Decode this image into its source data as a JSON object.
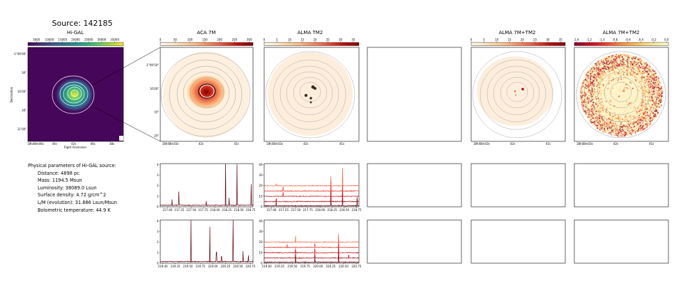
{
  "page": {
    "suptitle": "Source: 142185"
  },
  "colors": {
    "viridis": [
      "#440154",
      "#472d7b",
      "#3b528b",
      "#2c728e",
      "#21918c",
      "#28ae80",
      "#5ec962",
      "#addc30",
      "#fde725"
    ],
    "orrd": [
      "#fff7ec",
      "#fee8c8",
      "#fdd49e",
      "#fdbb84",
      "#fc8d59",
      "#ef6548",
      "#d7301f",
      "#b30000",
      "#7f0000"
    ],
    "ylorrd_r": [
      "#800026",
      "#bd0026",
      "#e31a1c",
      "#fc4e2a",
      "#fd8d3c",
      "#feb24c",
      "#fed976",
      "#ffeda0",
      "#ffffcc"
    ],
    "spectrum_lines": [
      "#67000d",
      "#a50f15",
      "#cb181d",
      "#ef3b2c",
      "#fb6a4a"
    ],
    "contour_gray": "#9a9a9a",
    "contour_white": "#ffffff"
  },
  "maps": {
    "higal": {
      "title": "Hi-GAL",
      "colorbar_ticks": [
        "5000",
        "10000",
        "15000",
        "20000",
        "25000",
        "30000",
        "35000"
      ],
      "ytick_labels": [
        "-1°09'00\"",
        "30\"",
        "10'00\"",
        "30\"",
        "11'00\""
      ],
      "xtick_labels": [
        "18h48m46s",
        "44s",
        "42s",
        "40s",
        "38s"
      ],
      "xlabel": "Right Ascension",
      "ylabel": "Declination"
    },
    "aca7m": {
      "title": "ACA 7M",
      "colorbar_ticks": [
        "0",
        "50",
        "100",
        "150",
        "200",
        "250",
        "300"
      ],
      "ytick_labels": [
        "-1°09'50\"",
        "10'00\"",
        "10\"",
        "20\""
      ],
      "xtick_labels": [
        "18h48m43s",
        "42s",
        "41s"
      ]
    },
    "alma_tm2": {
      "title": "ALMA TM2",
      "colorbar_ticks": [
        "0",
        "5",
        "10",
        "15",
        "20",
        "25",
        "30",
        "35"
      ],
      "xtick_labels": [
        "18h48m43s",
        "42s",
        "41s"
      ]
    },
    "alma_7m_tm2": {
      "title": "ALMA 7M+TM2",
      "colorbar_ticks": [
        "0",
        "5",
        "10",
        "15",
        "20",
        "25",
        "30",
        "35"
      ],
      "xtick_labels": [
        "18h48m43s",
        "42s",
        "41s"
      ]
    },
    "alma_7m_tm2_neg": {
      "title": "ALMA 7M+TM2",
      "colorbar_ticks": [
        "-1.4",
        "-1.2",
        "-1.0",
        "-0.8",
        "-0.6",
        "-0.4",
        "-0.2",
        "0.0"
      ],
      "xtick_labels": [
        "18h48m43s",
        "42s",
        "41s"
      ]
    }
  },
  "params": {
    "header": "Physical parameters of Hi-GAL source:",
    "lines": [
      "Distance: 4898 pc",
      "Mass: 1194.5 Msun",
      "Luminosity: 38089.0 Lsun",
      "Surface density: 4.72 g/cm^2",
      "L/M (evolution): 31.886 Lsun/Msun",
      "Bolometric temperature: 44.9 K"
    ]
  },
  "chart_data": [
    {
      "type": "line",
      "id": "aca_spw1",
      "xlim": [
        216.85,
        218.8
      ],
      "ylim": [
        0,
        4.1
      ],
      "xticks": [
        "217.00",
        "217.25",
        "217.50",
        "217.75",
        "218.00",
        "218.25",
        "218.50",
        "218.75"
      ],
      "xtick_values": [
        217.0,
        217.25,
        217.5,
        217.75,
        218.0,
        218.25,
        218.5,
        218.75
      ],
      "yticks": [
        "0",
        "1",
        "2",
        "3",
        "4"
      ],
      "ytick_values": [
        0,
        1,
        2,
        3,
        4
      ],
      "series": [
        {
          "baseline": 0.15,
          "noise": 0.04,
          "color_index": 0,
          "peaks": [
            [
              217.1,
              0.55
            ],
            [
              217.24,
              1.3
            ],
            [
              217.82,
              0.4
            ],
            [
              218.22,
              4.1
            ],
            [
              218.3,
              0.7
            ],
            [
              218.46,
              3.9
            ],
            [
              218.76,
              2.0
            ]
          ]
        }
      ]
    },
    {
      "type": "line",
      "id": "tm2_spw1",
      "xlim": [
        216.85,
        218.8
      ],
      "ylim": [
        0,
        41
      ],
      "xticks": [
        "217.00",
        "217.25",
        "217.50",
        "217.75",
        "218.00",
        "218.25",
        "218.50",
        "218.75"
      ],
      "xtick_values": [
        217.0,
        217.25,
        217.5,
        217.75,
        218.0,
        218.25,
        218.5,
        218.75
      ],
      "yticks": [
        "0",
        "10",
        "20",
        "30",
        "40"
      ],
      "ytick_values": [
        0,
        10,
        20,
        30,
        40
      ],
      "series": [
        {
          "baseline": 1,
          "noise": 0.4,
          "color_index": 0,
          "peaks": [
            [
              217.1,
              4
            ],
            [
              218.22,
              11
            ],
            [
              218.46,
              9
            ],
            [
              218.76,
              6
            ]
          ]
        },
        {
          "baseline": 5,
          "noise": 0.4,
          "color_index": 1,
          "peaks": [
            [
              217.1,
              3
            ],
            [
              218.22,
              10
            ],
            [
              218.46,
              8
            ],
            [
              218.76,
              4
            ]
          ]
        },
        {
          "baseline": 10,
          "noise": 0.4,
          "color_index": 2,
          "peaks": [
            [
              217.24,
              4
            ],
            [
              218.22,
              9
            ],
            [
              218.46,
              7
            ]
          ]
        },
        {
          "baseline": 15,
          "noise": 0.4,
          "color_index": 3,
          "peaks": [
            [
              217.24,
              4
            ],
            [
              218.22,
              8
            ],
            [
              218.46,
              6
            ]
          ]
        },
        {
          "baseline": 20,
          "noise": 0.4,
          "color_index": 4,
          "peaks": [
            [
              217.1,
              2
            ],
            [
              218.22,
              9
            ],
            [
              218.46,
              17
            ]
          ]
        }
      ]
    },
    {
      "type": "line",
      "id": "aca_spw2",
      "xlim": [
        218.95,
        220.8
      ],
      "ylim": [
        0,
        4.1
      ],
      "xticks": [
        "219.00",
        "219.25",
        "219.50",
        "219.75",
        "220.00",
        "220.25",
        "220.50",
        "220.75"
      ],
      "xtick_values": [
        219.0,
        219.25,
        219.5,
        219.75,
        220.0,
        220.25,
        220.5,
        220.75
      ],
      "yticks": [
        "0",
        "1",
        "2",
        "3",
        "4"
      ],
      "ytick_values": [
        0,
        1,
        2,
        3,
        4
      ],
      "series": [
        {
          "baseline": 0.15,
          "noise": 0.04,
          "color_index": 0,
          "peaks": [
            [
              219.56,
              4.0
            ],
            [
              219.94,
              3.3
            ],
            [
              220.07,
              0.9
            ],
            [
              220.17,
              0.5
            ],
            [
              220.4,
              4.0
            ],
            [
              220.6,
              1.0
            ],
            [
              220.71,
              0.6
            ]
          ]
        }
      ]
    },
    {
      "type": "line",
      "id": "tm2_spw2",
      "xlim": [
        218.95,
        220.8
      ],
      "ylim": [
        0,
        41
      ],
      "xticks": [
        "219.00",
        "219.25",
        "219.50",
        "219.75",
        "220.00",
        "220.25",
        "220.50",
        "220.75"
      ],
      "xtick_values": [
        219.0,
        219.25,
        219.5,
        219.75,
        220.0,
        220.25,
        220.5,
        220.75
      ],
      "yticks": [
        "0",
        "10",
        "20",
        "30",
        "40"
      ],
      "ytick_values": [
        0,
        10,
        20,
        30,
        40
      ],
      "series": [
        {
          "baseline": 1,
          "noise": 0.4,
          "color_index": 0,
          "peaks": [
            [
              219.56,
              7
            ],
            [
              219.94,
              5
            ],
            [
              220.4,
              10
            ]
          ]
        },
        {
          "baseline": 5,
          "noise": 0.4,
          "color_index": 1,
          "peaks": [
            [
              219.56,
              6
            ],
            [
              219.94,
              5
            ],
            [
              220.4,
              9
            ],
            [
              220.6,
              3
            ]
          ]
        },
        {
          "baseline": 10,
          "noise": 0.4,
          "color_index": 2,
          "peaks": [
            [
              219.56,
              4
            ],
            [
              219.94,
              4
            ],
            [
              220.4,
              8
            ]
          ]
        },
        {
          "baseline": 15,
          "noise": 0.4,
          "color_index": 3,
          "peaks": [
            [
              219.4,
              3
            ],
            [
              219.94,
              4
            ],
            [
              220.4,
              7
            ]
          ]
        },
        {
          "baseline": 20,
          "noise": 0.4,
          "color_index": 4,
          "peaks": [
            [
              219.56,
              6
            ],
            [
              220.4,
              8
            ]
          ]
        }
      ]
    }
  ]
}
